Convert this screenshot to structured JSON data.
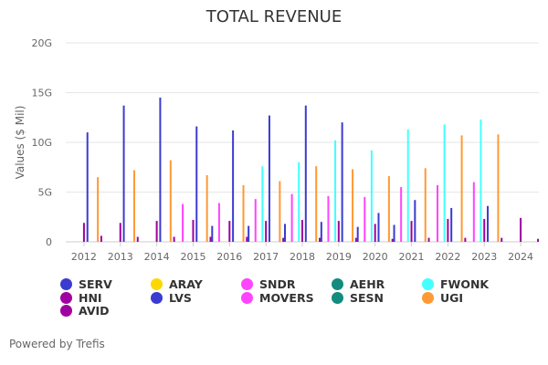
{
  "chart_data": {
    "type": "bar",
    "title": "TOTAL REVENUE",
    "ylabel": "Values ($ Mil)",
    "ylim": [
      0,
      20
    ],
    "yticks": [
      "0",
      "5G",
      "10G",
      "15G",
      "20G"
    ],
    "ytick_values": [
      0,
      5,
      10,
      15,
      20
    ],
    "categories": [
      "2012",
      "2013",
      "2014",
      "2015",
      "2016",
      "2017",
      "2018",
      "2019",
      "2020",
      "2021",
      "2022",
      "2023",
      "2024"
    ],
    "grid": true,
    "legend_placement": "bottom",
    "series": [
      {
        "name": "SERV",
        "color": "#3b3bd1",
        "values": [
          null,
          null,
          null,
          null,
          1.6,
          1.6,
          1.8,
          2.0,
          1.5,
          1.7,
          null,
          null,
          null
        ]
      },
      {
        "name": "ARAY",
        "color": "#ffd700",
        "values": [
          null,
          null,
          null,
          null,
          null,
          null,
          null,
          null,
          null,
          null,
          null,
          null,
          null
        ]
      },
      {
        "name": "SNDR",
        "color": "#ff44ff",
        "values": [
          null,
          null,
          null,
          3.8,
          3.9,
          4.3,
          4.8,
          4.6,
          4.5,
          5.5,
          5.7,
          6.0,
          null
        ]
      },
      {
        "name": "AEHR",
        "color": "#128c7e",
        "values": [
          null,
          null,
          null,
          null,
          null,
          null,
          null,
          null,
          null,
          null,
          null,
          null,
          null
        ]
      },
      {
        "name": "FWONK",
        "color": "#44ffff",
        "values": [
          null,
          null,
          null,
          null,
          null,
          7.6,
          8.0,
          10.2,
          9.2,
          11.3,
          11.8,
          12.3,
          null
        ]
      },
      {
        "name": "HNI",
        "color": "#a000a0",
        "values": [
          1.9,
          1.9,
          2.1,
          2.2,
          2.1,
          2.1,
          2.2,
          2.1,
          1.8,
          2.1,
          2.3,
          2.3,
          2.4
        ]
      },
      {
        "name": "LVS",
        "color": "#3b3bd1",
        "values": [
          11.0,
          13.7,
          14.5,
          11.6,
          11.2,
          12.7,
          13.7,
          12.0,
          2.9,
          4.2,
          3.4,
          3.6,
          null
        ]
      },
      {
        "name": "MOVERS",
        "color": "#ff44ff",
        "values": [
          null,
          null,
          null,
          null,
          null,
          null,
          null,
          null,
          null,
          null,
          null,
          null,
          null
        ]
      },
      {
        "name": "SESN",
        "color": "#128c7e",
        "values": [
          null,
          null,
          null,
          null,
          null,
          null,
          null,
          null,
          null,
          null,
          null,
          null,
          null
        ]
      },
      {
        "name": "UGI",
        "color": "#ff9933",
        "values": [
          6.5,
          7.2,
          8.2,
          6.7,
          5.7,
          6.1,
          7.6,
          7.3,
          6.6,
          7.4,
          10.7,
          10.8,
          null
        ]
      },
      {
        "name": "AVID",
        "color": "#a000a0",
        "values": [
          0.6,
          0.5,
          0.5,
          0.5,
          0.5,
          0.4,
          0.4,
          0.4,
          0.3,
          0.4,
          0.4,
          0.4,
          0.3
        ]
      }
    ],
    "legend": [
      {
        "name": "SERV",
        "color": "#3b3bd1"
      },
      {
        "name": "ARAY",
        "color": "#ffd700"
      },
      {
        "name": "SNDR",
        "color": "#ff44ff"
      },
      {
        "name": "AEHR",
        "color": "#128c7e"
      },
      {
        "name": "FWONK",
        "color": "#44ffff"
      },
      {
        "name": "HNI",
        "color": "#a000a0"
      },
      {
        "name": "LVS",
        "color": "#3b3bd1"
      },
      {
        "name": "MOVERS",
        "color": "#ff44ff"
      },
      {
        "name": "SESN",
        "color": "#128c7e"
      },
      {
        "name": "UGI",
        "color": "#ff9933"
      },
      {
        "name": "AVID",
        "color": "#a000a0"
      }
    ]
  },
  "footer": {
    "text": "Powered by Trefis"
  }
}
